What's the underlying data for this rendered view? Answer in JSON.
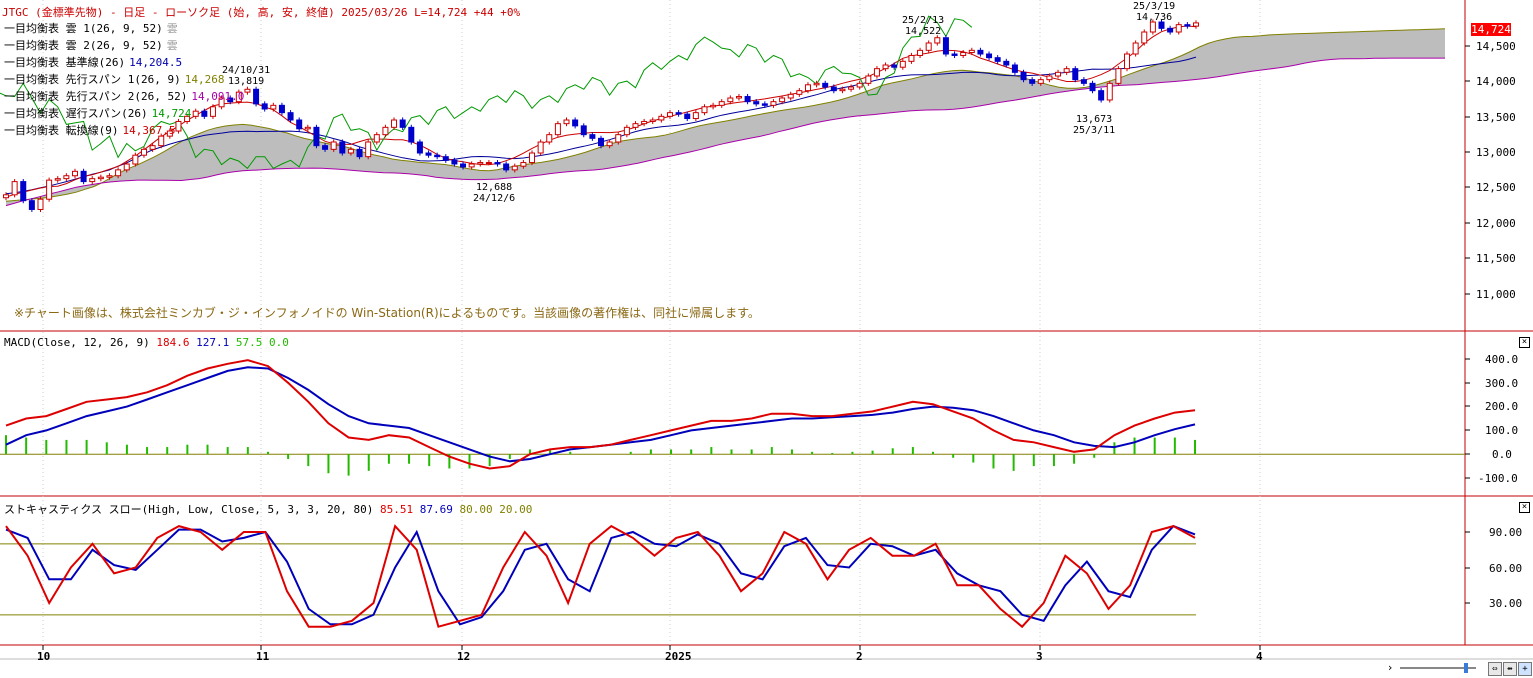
{
  "header": {
    "text": "JTGC (金標準先物) - 日足 - ローソク足 (始, 高, 安, 終値)  2025/03/26 L=14,724 +44  +0%"
  },
  "legend": [
    {
      "label": "一目均衡表 雲 1(26, 9, 52)",
      "value": "雲",
      "color": "#999999"
    },
    {
      "label": "一目均衡表 雲 2(26, 9, 52)",
      "value": "雲",
      "color": "#999999"
    },
    {
      "label": "一目均衡表 基準線(26)",
      "value": "14,204.5",
      "color": "#0000aa"
    },
    {
      "label": "一目均衡表 先行スパン 1(26, 9)",
      "value": "14,268",
      "color": "#808000"
    },
    {
      "label": "一目均衡表 先行スパン 2(26, 52)",
      "value": "14,091.0",
      "color": "#aa00aa"
    },
    {
      "label": "一目均衡表 遅行スパン(26)",
      "value": "14,724",
      "color": "#009900"
    },
    {
      "label": "一目均衡表 転換線(9)",
      "value": "14,367.5",
      "color": "#cc0000"
    }
  ],
  "copyright": "※チャート画像は、株式会社ミンカブ・ジ・インフォノイドの Win-Station(R)によるものです。当該画像の著作権は、同社に帰属します。",
  "price_axis": {
    "labels": [
      "14,500",
      "14,000",
      "13,500",
      "13,000",
      "12,500",
      "12,000",
      "11,500",
      "11,000"
    ],
    "last_price": "14,724"
  },
  "annotations": [
    {
      "top": "24/10/31",
      "bottom": "13,819"
    },
    {
      "top": "12,688",
      "bottom": "24/12/6"
    },
    {
      "top": "25/2/13",
      "bottom": "14,522"
    },
    {
      "top": "25/3/19",
      "bottom": "14,736"
    },
    {
      "top": "13,673",
      "bottom": "25/3/11"
    }
  ],
  "macd": {
    "title": "MACD(Close, 12, 26, 9)",
    "v1": "184.6",
    "v2": "127.1",
    "v3": "57.5",
    "v4": "0.0",
    "axis": [
      "400.0",
      "300.0",
      "200.0",
      "100.0",
      "0.0",
      "-100.0"
    ]
  },
  "stoch": {
    "title": "ストキャスティクス スロー(High, Low, Close, 5, 3, 3, 20, 80)",
    "v1": "85.51",
    "v2": "87.69",
    "v3": "80.00",
    "v4": "20.00",
    "axis": [
      "90.00",
      "60.00",
      "30.00"
    ]
  },
  "x_axis": [
    "10",
    "11",
    "12",
    "2025",
    "2",
    "3",
    "4"
  ],
  "colors": {
    "up": "#cc0000",
    "down": "#0000cc",
    "kijun": "#000099",
    "tenkan": "#cc0000",
    "chikou": "#009900",
    "cloud": "#bdbdbd",
    "spanA": "#808000",
    "spanB": "#aa00aa",
    "macd": "#dd0000",
    "signal": "#0000bb",
    "hist": "#22bb00",
    "frame": "#c00000"
  },
  "chart_data": [
    {
      "type": "candlestick",
      "title": "JTGC (金標準先物) - 日足 - ローソク足 (始, 高, 安, 終値)",
      "x_axis_ticks": [
        "10",
        "11",
        "12",
        "2025",
        "2",
        "3",
        "4"
      ],
      "y_axis_ticks": [
        11000,
        11500,
        12000,
        12500,
        13000,
        13500,
        14000,
        14500
      ],
      "ylim": [
        10700,
        14900
      ],
      "closes": [
        12380,
        12560,
        12300,
        12180,
        12320,
        12580,
        12600,
        12640,
        12700,
        12560,
        12600,
        12620,
        12640,
        12720,
        12800,
        12920,
        13000,
        13050,
        13180,
        13250,
        13380,
        13450,
        13520,
        13450,
        13580,
        13700,
        13650,
        13780,
        13819,
        13620,
        13550,
        13600,
        13500,
        13400,
        13280,
        13300,
        13050,
        13000,
        13100,
        12950,
        13000,
        12900,
        13100,
        13200,
        13300,
        13400,
        13300,
        13100,
        12950,
        12920,
        12900,
        12850,
        12800,
        12760,
        12800,
        12820,
        12820,
        12800,
        12720,
        12770,
        12820,
        12950,
        13100,
        13200,
        13350,
        13400,
        13320,
        13200,
        13150,
        13050,
        13100,
        13200,
        13300,
        13350,
        13380,
        13400,
        13450,
        13500,
        13480,
        13420,
        13500,
        13580,
        13600,
        13650,
        13700,
        13720,
        13650,
        13620,
        13600,
        13650,
        13700,
        13750,
        13800,
        13880,
        13900,
        13850,
        13800,
        13820,
        13850,
        13900,
        14000,
        14100,
        14150,
        14120,
        14200,
        14280,
        14350,
        14450,
        14522,
        14300,
        14280,
        14320,
        14350,
        14300,
        14250,
        14200,
        14150,
        14050,
        13950,
        13900,
        13950,
        14000,
        14050,
        14100,
        13950,
        13900,
        13800,
        13673,
        13900,
        14100,
        14300,
        14450,
        14600,
        14736,
        14650,
        14600,
        14700,
        14680,
        14724
      ],
      "ichimoku_values": {
        "kijun": 14204.5,
        "span_a": 14268,
        "span_b": 14091.0,
        "chikou": 14724,
        "tenkan": 14367.5
      }
    },
    {
      "type": "line",
      "title": "MACD(Close, 12, 26, 9)",
      "ylim": [
        -120,
        420
      ],
      "y_axis_ticks": [
        -100,
        0,
        100,
        200,
        300,
        400
      ],
      "series": [
        {
          "name": "MACD",
          "values": [
            120,
            150,
            160,
            190,
            220,
            230,
            240,
            260,
            290,
            330,
            360,
            380,
            395,
            370,
            300,
            220,
            130,
            70,
            60,
            80,
            70,
            30,
            -10,
            -40,
            -60,
            -50,
            0,
            20,
            30,
            30,
            40,
            60,
            80,
            100,
            120,
            140,
            140,
            150,
            170,
            170,
            160,
            160,
            170,
            180,
            200,
            220,
            210,
            180,
            150,
            100,
            60,
            50,
            30,
            10,
            20,
            80,
            120,
            150,
            175,
            185
          ]
        },
        {
          "name": "Signal",
          "values": [
            40,
            80,
            100,
            130,
            160,
            180,
            200,
            230,
            260,
            290,
            320,
            350,
            365,
            360,
            320,
            270,
            210,
            160,
            130,
            120,
            110,
            80,
            50,
            20,
            -10,
            -30,
            -20,
            0,
            20,
            30,
            40,
            50,
            60,
            80,
            100,
            110,
            120,
            130,
            140,
            150,
            150,
            155,
            160,
            165,
            175,
            190,
            200,
            195,
            185,
            160,
            130,
            100,
            80,
            50,
            35,
            30,
            50,
            80,
            105,
            125
          ]
        },
        {
          "name": "Histogram",
          "values": [
            80,
            70,
            60,
            60,
            60,
            50,
            40,
            30,
            30,
            40,
            40,
            30,
            30,
            10,
            -20,
            -50,
            -80,
            -90,
            -70,
            -40,
            -40,
            -50,
            -60,
            -60,
            -50,
            -20,
            20,
            20,
            10,
            0,
            0,
            10,
            20,
            20,
            20,
            30,
            20,
            20,
            30,
            20,
            10,
            5,
            10,
            15,
            25,
            30,
            10,
            -15,
            -35,
            -60,
            -70,
            -50,
            -50,
            -40,
            -15,
            50,
            70,
            70,
            70,
            60
          ]
        }
      ]
    },
    {
      "type": "line",
      "title": "ストキャスティクス スロー(High, Low, Close, 5, 3, 3, 20, 80)",
      "ylim": [
        0,
        105
      ],
      "y_axis_ticks": [
        30,
        60,
        90
      ],
      "reference_lines": [
        80,
        20
      ],
      "series": [
        {
          "name": "%K",
          "values": [
            95,
            70,
            30,
            60,
            80,
            55,
            60,
            85,
            95,
            90,
            75,
            90,
            90,
            40,
            10,
            10,
            15,
            30,
            95,
            75,
            10,
            15,
            20,
            60,
            90,
            70,
            30,
            80,
            95,
            85,
            70,
            85,
            90,
            70,
            40,
            55,
            90,
            80,
            50,
            75,
            85,
            70,
            70,
            80,
            45,
            45,
            25,
            10,
            30,
            70,
            55,
            25,
            45,
            90,
            95,
            85
          ]
        },
        {
          "name": "%D",
          "values": [
            92,
            85,
            50,
            50,
            75,
            62,
            58,
            75,
            92,
            92,
            82,
            85,
            90,
            65,
            25,
            12,
            12,
            20,
            60,
            90,
            40,
            12,
            18,
            40,
            75,
            80,
            50,
            40,
            85,
            90,
            80,
            78,
            88,
            80,
            55,
            50,
            78,
            85,
            62,
            60,
            80,
            78,
            70,
            75,
            55,
            45,
            40,
            20,
            15,
            45,
            65,
            40,
            35,
            75,
            95,
            88
          ]
        }
      ]
    }
  ]
}
